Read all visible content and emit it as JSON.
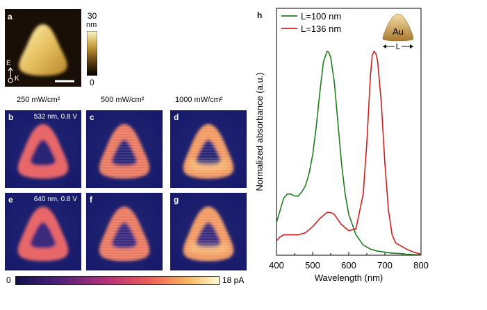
{
  "panel_a": {
    "label": "a",
    "colorbar_max": "30",
    "colorbar_unit": "nm",
    "colorbar_min": "0",
    "axis_top": "E",
    "axis_bottom": "K"
  },
  "powers": [
    "250 mW/cm²",
    "500 mW/cm²",
    "1000 mW/cm²"
  ],
  "maps": [
    {
      "label": "b",
      "condition": "532 nm, 0.8 V"
    },
    {
      "label": "c",
      "condition": ""
    },
    {
      "label": "d",
      "condition": ""
    },
    {
      "label": "e",
      "condition": "640 nm, 0.8 V"
    },
    {
      "label": "f",
      "condition": ""
    },
    {
      "label": "g",
      "condition": ""
    }
  ],
  "current_colorbar": {
    "min": "0",
    "max": "18 pA"
  },
  "colors": {
    "map_background": "#1b1e6e",
    "green_series": "#1e7d1e",
    "red_series": "#d01c1c"
  },
  "chart_data": {
    "type": "line",
    "panel_label": "h",
    "title": "",
    "xlabel": "Wavelength (nm)",
    "ylabel": "Normalized absorbance (a.u.)",
    "xlim": [
      400,
      800
    ],
    "xticks": [
      400,
      500,
      600,
      700,
      800
    ],
    "ylim": [
      0,
      1.0
    ],
    "inset_label": "Au",
    "inset_dimension": "L",
    "legend_position": "top-left",
    "series": [
      {
        "name": "L=100 nm",
        "color": "#1e7d1e",
        "x": [
          400,
          410,
          420,
          430,
          440,
          450,
          460,
          470,
          480,
          490,
          500,
          510,
          520,
          530,
          540,
          545,
          550,
          560,
          570,
          580,
          590,
          600,
          620,
          640,
          660,
          680,
          700,
          720,
          740,
          760,
          780,
          800
        ],
        "y": [
          0.16,
          0.22,
          0.28,
          0.3,
          0.3,
          0.29,
          0.29,
          0.31,
          0.34,
          0.4,
          0.49,
          0.63,
          0.8,
          0.95,
          1.0,
          0.995,
          0.97,
          0.85,
          0.65,
          0.45,
          0.3,
          0.2,
          0.1,
          0.05,
          0.03,
          0.02,
          0.015,
          0.01,
          0.008,
          0.005,
          0.003,
          0.002
        ]
      },
      {
        "name": "L=136 nm",
        "color": "#d01c1c",
        "x": [
          400,
          410,
          420,
          440,
          460,
          480,
          500,
          520,
          540,
          550,
          560,
          580,
          600,
          620,
          640,
          650,
          660,
          665,
          670,
          675,
          680,
          690,
          700,
          710,
          720,
          730,
          740,
          760,
          780,
          800
        ],
        "y": [
          0.07,
          0.09,
          0.1,
          0.1,
          0.1,
          0.11,
          0.14,
          0.18,
          0.21,
          0.21,
          0.2,
          0.15,
          0.12,
          0.13,
          0.3,
          0.55,
          0.88,
          0.98,
          1.0,
          0.99,
          0.95,
          0.75,
          0.45,
          0.22,
          0.1,
          0.06,
          0.05,
          0.03,
          0.015,
          0.005
        ]
      }
    ]
  }
}
